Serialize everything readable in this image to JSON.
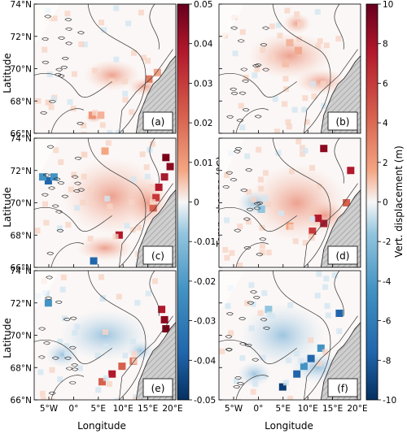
{
  "colors": {
    "warm_strong": "#7a0019",
    "warm_mid": "#d6604d",
    "warm_light": "#f7c8b4",
    "neutral": "#f7f7f7",
    "cool_light": "#c9e1ef",
    "cool_mid": "#4393c3",
    "cool_strong": "#0b3d75",
    "land": "#c8c8c8",
    "contour": "#333333"
  },
  "axes": {
    "ylabel": "Latitude",
    "xlabel": "Longitude",
    "yticks": [
      "74°N",
      "72°N",
      "70°N",
      "68°N",
      "66°N"
    ],
    "xticks": [
      "5°W",
      "0°",
      "5°E",
      "10°E",
      "15°E",
      "20°E"
    ]
  },
  "colorbar_temp": {
    "label": "Temp. change (°C)",
    "ticks": [
      "0.05",
      "0.04",
      "0.03",
      "0.02",
      "0.01",
      "0",
      "-0.01",
      "-0.02",
      "-0.03",
      "-0.04",
      "-0.05"
    ]
  },
  "colorbar_disp": {
    "label": "Vert. displacement (m)",
    "ticks": [
      "10",
      "8",
      "6",
      "4",
      "2",
      "0",
      "-2",
      "-4",
      "-6",
      "-8",
      "-10"
    ]
  },
  "panels": [
    {
      "label": "(a)"
    },
    {
      "label": "(b)"
    },
    {
      "label": "(c)"
    },
    {
      "label": "(d)"
    },
    {
      "label": "(e)"
    },
    {
      "label": "(f)"
    }
  ]
}
